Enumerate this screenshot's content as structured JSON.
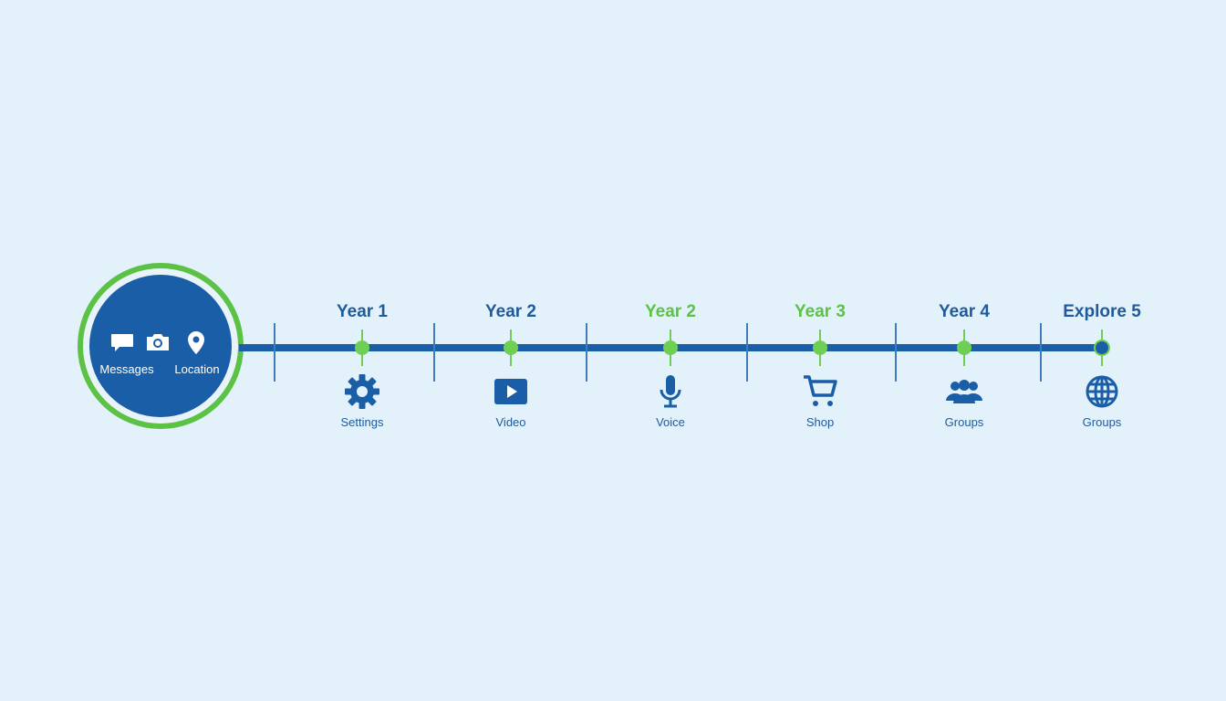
{
  "colors": {
    "background": "#e3f1fa",
    "primary": "#1a5ea8",
    "accent": "#5cc245"
  },
  "hub": {
    "icons": [
      "message-icon",
      "camera-icon",
      "location-pin-icon"
    ],
    "labels": [
      "Messages",
      "Location"
    ]
  },
  "milestones": [
    {
      "year": "Year 1",
      "year_color": "#1f5a9a",
      "icon": "gear-icon",
      "name": "Settings",
      "marker": "green"
    },
    {
      "year": "Year 2",
      "year_color": "#1f5a9a",
      "icon": "video-play-icon",
      "name": "Video",
      "marker": "green"
    },
    {
      "year": "Year 2",
      "year_color": "#5cc245",
      "icon": "microphone-icon",
      "name": "Voice",
      "marker": "green"
    },
    {
      "year": "Year 3",
      "year_color": "#5cc245",
      "icon": "shopping-cart-icon",
      "name": "Shop",
      "marker": "green"
    },
    {
      "year": "Year 4",
      "year_color": "#1f5a9a",
      "icon": "group-icon",
      "name": "Groups",
      "marker": "green"
    },
    {
      "year": "Explore 5",
      "year_color": "#1f5a9a",
      "icon": "globe-icon",
      "name": "Groups",
      "marker": "blue"
    }
  ]
}
